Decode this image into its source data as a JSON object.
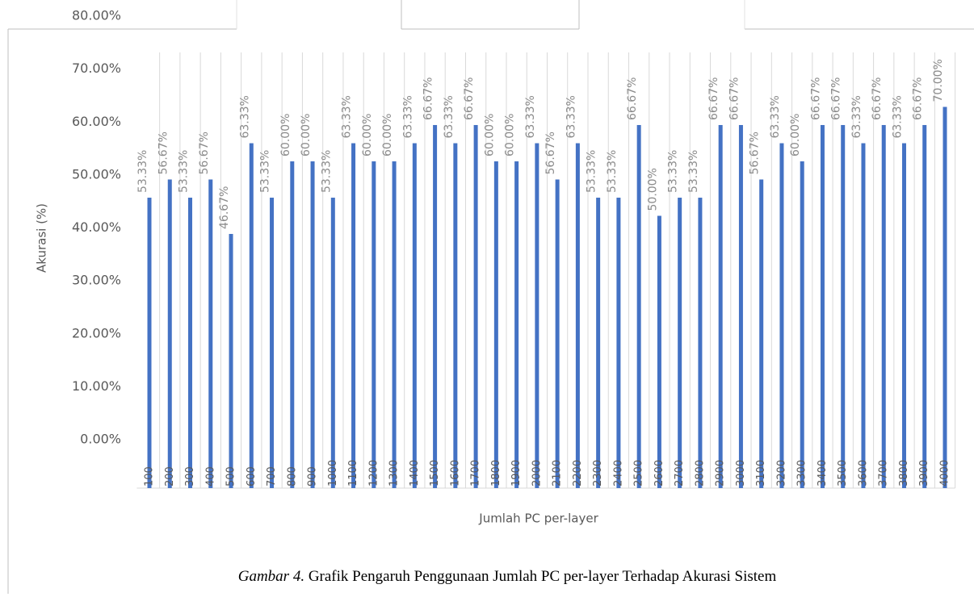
{
  "chart_data": {
    "type": "bar",
    "y_label": "Akurasi (%)",
    "x_label": "Jumlah PC per-layer",
    "categories": [
      "100",
      "200",
      "300",
      "400",
      "500",
      "600",
      "700",
      "800",
      "900",
      "1000",
      "1100",
      "1200",
      "1300",
      "1400",
      "1500",
      "1600",
      "1700",
      "1800",
      "1900",
      "2000",
      "2100",
      "2200",
      "2300",
      "2400",
      "2500",
      "2600",
      "2700",
      "2800",
      "2900",
      "3000",
      "3100",
      "3200",
      "3300",
      "3400",
      "3500",
      "3600",
      "3700",
      "3800",
      "3900",
      "4000"
    ],
    "values": [
      53.33,
      56.67,
      53.33,
      56.67,
      46.67,
      63.33,
      53.33,
      60,
      60,
      53.33,
      63.33,
      60,
      60,
      63.33,
      66.67,
      63.33,
      66.67,
      60,
      60,
      63.33,
      56.67,
      63.33,
      53.33,
      53.33,
      66.67,
      50,
      53.33,
      53.33,
      66.67,
      66.67,
      56.67,
      63.33,
      60,
      66.67,
      66.67,
      63.33,
      66.67,
      63.33,
      66.67,
      70
    ],
    "value_labels": [
      "53.33%",
      "56.67%",
      "53.33%",
      "56.67%",
      "46.67%",
      "63.33%",
      "53.33%",
      "60.00%",
      "60.00%",
      "53.33%",
      "63.33%",
      "60.00%",
      "60.00%",
      "63.33%",
      "66.67%",
      "63.33%",
      "66.67%",
      "60.00%",
      "60.00%",
      "63.33%",
      "56.67%",
      "63.33%",
      "53.33%",
      "53.33%",
      "66.67%",
      "50.00%",
      "53.33%",
      "53.33%",
      "66.67%",
      "66.67%",
      "56.67%",
      "63.33%",
      "60.00%",
      "66.67%",
      "66.67%",
      "63.33%",
      "66.67%",
      "63.33%",
      "66.67%",
      "70.00%"
    ],
    "color": "#4472c4",
    "ylim": [
      0,
      80
    ],
    "yticks": [
      {
        "value": 0,
        "label": "0.00%"
      },
      {
        "value": 10,
        "label": "10.00%"
      },
      {
        "value": 20,
        "label": "20.00%"
      },
      {
        "value": 30,
        "label": "30.00%"
      },
      {
        "value": 40,
        "label": "40.00%"
      },
      {
        "value": 50,
        "label": "50.00%"
      },
      {
        "value": 60,
        "label": "60.00%"
      },
      {
        "value": 70,
        "label": "70.00%"
      },
      {
        "value": 80,
        "label": "80.00%"
      }
    ],
    "grid": true
  },
  "caption": {
    "label": "Gambar 4.",
    "text": "Grafik Pengaruh Penggunaan Jumlah PC per-layer Terhadap Akurasi Sistem"
  }
}
